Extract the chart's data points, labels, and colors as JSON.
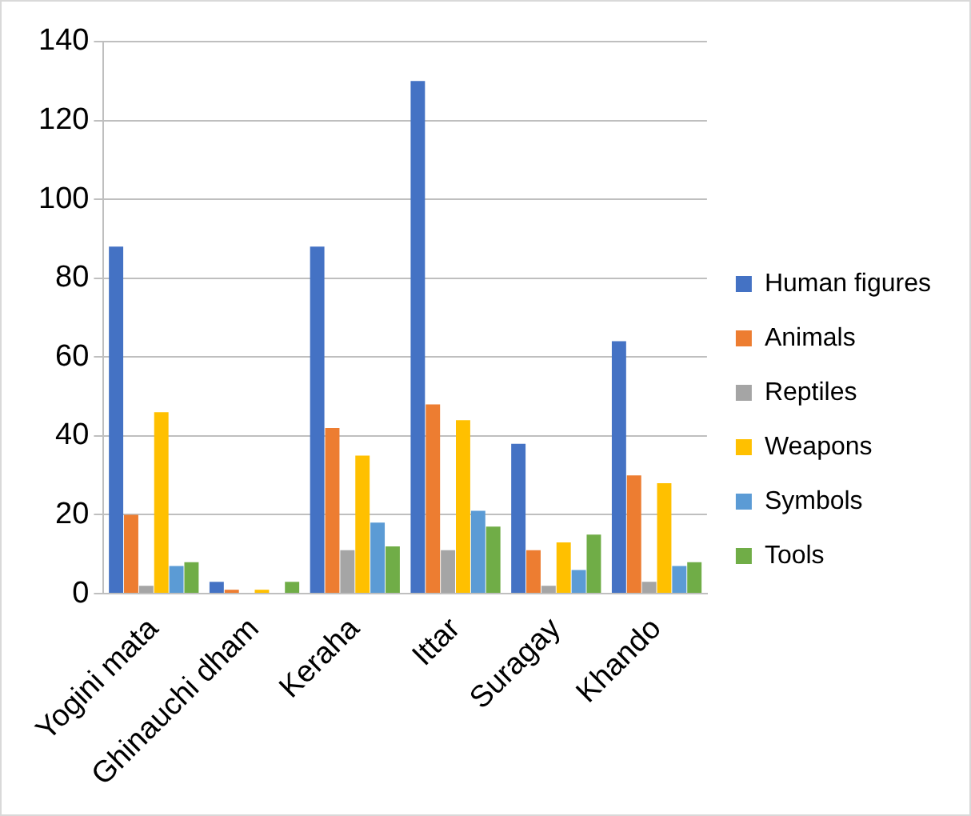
{
  "chart_data": {
    "type": "bar",
    "categories": [
      "Yogini mata",
      "Ghinauchi dham",
      "Keraha",
      "Ittar",
      "Suragay",
      "Khando"
    ],
    "series": [
      {
        "name": "Human figures",
        "color": "#4472c4",
        "values": [
          88,
          3,
          88,
          130,
          38,
          64
        ]
      },
      {
        "name": "Animals",
        "color": "#ed7d31",
        "values": [
          20,
          1,
          42,
          48,
          11,
          30
        ]
      },
      {
        "name": "Reptiles",
        "color": "#a5a5a5",
        "values": [
          2,
          0,
          11,
          11,
          2,
          3
        ]
      },
      {
        "name": "Weapons",
        "color": "#ffc000",
        "values": [
          46,
          1,
          35,
          44,
          13,
          28
        ]
      },
      {
        "name": "Symbols",
        "color": "#5b9bd5",
        "values": [
          7,
          0,
          18,
          21,
          6,
          7
        ]
      },
      {
        "name": "Tools",
        "color": "#70ad47",
        "values": [
          8,
          3,
          12,
          17,
          15,
          8
        ]
      }
    ],
    "ylim": [
      0,
      140
    ],
    "yticks": [
      0,
      20,
      40,
      60,
      80,
      100,
      120,
      140
    ],
    "grid": "y",
    "legend": "right"
  }
}
